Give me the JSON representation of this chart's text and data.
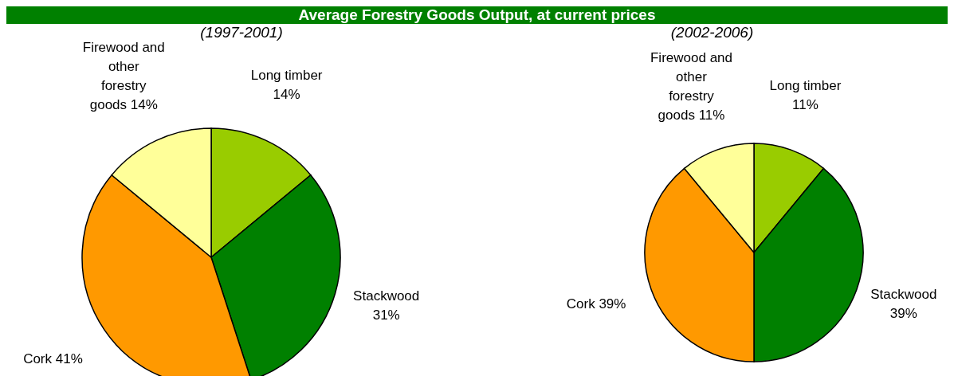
{
  "chart_data": [
    {
      "type": "pie",
      "title": "Average Forestry Goods Output, at current prices",
      "subtitle": "(1997-2001)",
      "categories": [
        "Long timber",
        "Stackwood",
        "Cork",
        "Firewood and other forestry goods"
      ],
      "values": [
        14,
        31,
        41,
        14
      ],
      "value_labels": [
        "14%",
        "31%",
        "41%",
        "14%"
      ],
      "colors": [
        "#99cc00",
        "#008000",
        "#ff9900",
        "#ffff99"
      ],
      "legend": false
    },
    {
      "type": "pie",
      "subtitle": "(2002-2006)",
      "categories": [
        "Long timber",
        "Stackwood",
        "Cork",
        "Firewood and other forestry goods"
      ],
      "values": [
        11,
        39,
        39,
        11
      ],
      "value_labels": [
        "11%",
        "39%",
        "39%",
        "11%"
      ],
      "colors": [
        "#99cc00",
        "#008000",
        "#ff9900",
        "#ffff99"
      ],
      "legend": false
    }
  ]
}
